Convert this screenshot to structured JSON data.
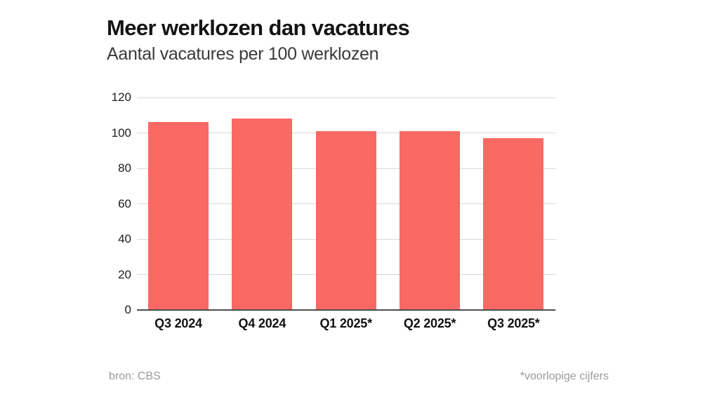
{
  "header": {
    "title": "Meer werklozen dan vacatures",
    "subtitle": "Aantal vacatures per 100 werklozen"
  },
  "chart_data": {
    "type": "bar",
    "categories": [
      "Q3 2024",
      "Q4 2024",
      "Q1 2025*",
      "Q2 2025*",
      "Q3 2025*"
    ],
    "values": [
      106,
      108,
      101,
      101,
      97
    ],
    "title": "Meer werklozen dan vacatures",
    "subtitle": "Aantal vacatures per 100 werklozen",
    "xlabel": "",
    "ylabel": "",
    "ylim": [
      0,
      120
    ],
    "yticks": [
      0,
      20,
      40,
      60,
      80,
      100,
      120
    ],
    "grid": true,
    "legend": false,
    "bar_color": "#fa6964"
  },
  "footer": {
    "source": "bron: CBS",
    "note": "*voorlopige cijfers"
  },
  "colors": {
    "background": "#ffffff",
    "bar": "#fa6964",
    "gridline": "#d8d8d8",
    "axis_line": "#4d4d4d",
    "title_text": "#141414",
    "subtitle_text": "#3a3a3a",
    "tick_text": "#1c1c1c",
    "footer_text": "#9a9a9a"
  }
}
